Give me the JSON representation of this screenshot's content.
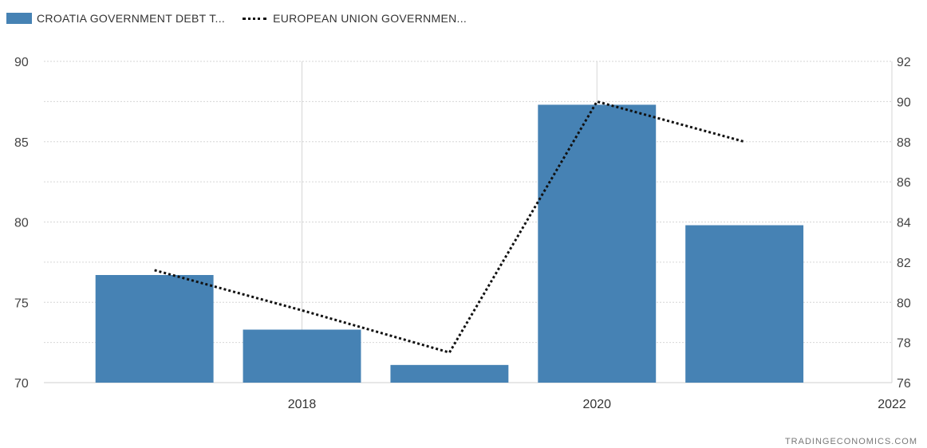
{
  "legend": {
    "bar_label": "CROATIA GOVERNMENT DEBT T...",
    "line_label": "EUROPEAN UNION GOVERNMEN..."
  },
  "source_credit": "TRADINGECONOMICS.COM",
  "chart_data": {
    "type": "bar",
    "x": [
      2017,
      2018,
      2019,
      2020,
      2021
    ],
    "x_ticks": [
      "2018",
      "2020",
      "2022"
    ],
    "x_tick_values": [
      2018,
      2020,
      2022
    ],
    "xlim": [
      2016.25,
      2022
    ],
    "series": [
      {
        "name": "CROATIA GOVERNMENT DEBT T...",
        "type": "bar",
        "axis": "left",
        "color": "#4682b4",
        "values": [
          76.7,
          73.3,
          71.1,
          87.3,
          79.8
        ]
      },
      {
        "name": "EUROPEAN UNION GOVERNMEN...",
        "type": "line",
        "style": "dotted",
        "axis": "right",
        "color": "#111111",
        "values": [
          81.6,
          79.6,
          77.5,
          90.0,
          88.0
        ]
      }
    ],
    "left_axis": {
      "ylim": [
        70,
        90
      ],
      "ticks": [
        "70",
        "75",
        "80",
        "85",
        "90"
      ]
    },
    "right_axis": {
      "ylim": [
        76,
        92
      ],
      "ticks": [
        "76",
        "78",
        "80",
        "82",
        "84",
        "86",
        "88",
        "90",
        "92"
      ]
    },
    "grid": true,
    "legend_position": "top-left"
  }
}
